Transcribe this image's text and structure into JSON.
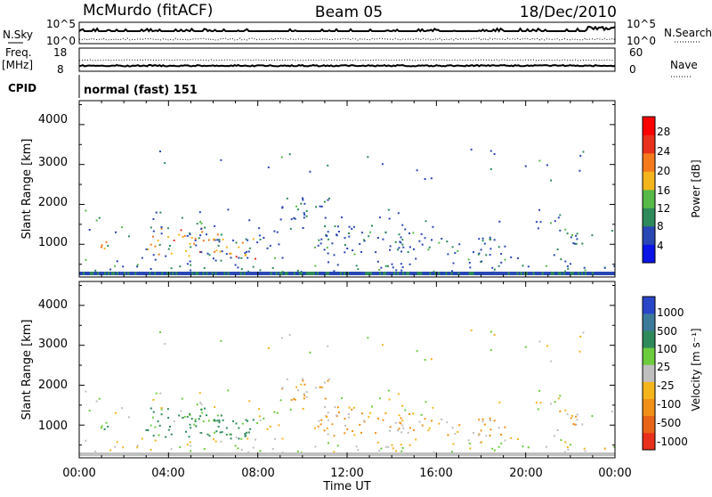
{
  "header": {
    "station": "McMurdo (fitACF)",
    "beam": "Beam 05",
    "date": "18/Dec/2010"
  },
  "strips": {
    "nsky_label": "N.Sky",
    "nsky_ticks": [
      "10^5",
      "10^0"
    ],
    "nsearch_label": "N.Search",
    "nsearch_ticks": [
      "10^5",
      "10^0"
    ],
    "freq_label": "Freq.",
    "freq_unit": "[MHz]",
    "freq_ticks": [
      "18",
      "8"
    ],
    "nave_label": "Nave",
    "nave_ticks": [
      "60",
      "0"
    ],
    "cpid_label": "CPID",
    "cpid_value": "normal (fast) 151"
  },
  "chart_data": [
    {
      "type": "heatmap",
      "name": "power",
      "ylabel": "Slant Range [km]",
      "ylim": [
        180,
        4600
      ],
      "yticks": [
        "4000",
        "3000",
        "2000",
        "1000"
      ],
      "colorbar_label": "Power [dB]",
      "colorbar_ticks": [
        "28",
        "24",
        "20",
        "16",
        "12",
        "8",
        "4"
      ],
      "colors": [
        "#0a14e6",
        "#2846b4",
        "#2e8a5a",
        "#57b947",
        "#f3b51b",
        "#f47a1c",
        "#e8301c",
        "#ff0000"
      ],
      "xlim": [
        0,
        24
      ]
    },
    {
      "type": "heatmap",
      "name": "velocity",
      "ylabel": "Slant Range [km]",
      "ylim": [
        180,
        4600
      ],
      "yticks": [
        "4000",
        "3000",
        "2000",
        "1000"
      ],
      "colorbar_label": "Velocity [m s⁻¹]",
      "colorbar_ticks": [
        "1000",
        "500",
        "100",
        "25",
        "-25",
        "-100",
        "-500",
        "-1000"
      ],
      "colors": [
        "#2a46c8",
        "#3c7a9a",
        "#2e8a5a",
        "#6ccc3e",
        "#bfbfbf",
        "#f3b51b",
        "#f09018",
        "#e86418",
        "#e8301c"
      ],
      "xlim": [
        0,
        24
      ]
    }
  ],
  "xaxis": {
    "label": "Time UT",
    "ticks": [
      "00:00",
      "04:00",
      "08:00",
      "12:00",
      "16:00",
      "20:00",
      "00:00"
    ]
  }
}
